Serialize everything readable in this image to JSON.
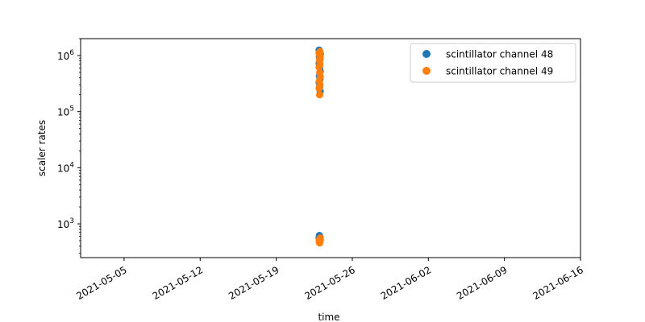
{
  "chart_data": {
    "type": "scatter",
    "title": "",
    "xlabel": "time",
    "ylabel": "scaler rates",
    "x_scale": "date",
    "y_scale": "log",
    "xlim": [
      "2021-05-01",
      "2021-06-16"
    ],
    "ylim": [
      250,
      2000000
    ],
    "x_ticks": [
      "2021-05-05",
      "2021-05-12",
      "2021-05-19",
      "2021-05-26",
      "2021-06-02",
      "2021-06-09",
      "2021-06-16"
    ],
    "y_ticks": [
      {
        "value": 1000,
        "label_base": "10",
        "label_exp": "3"
      },
      {
        "value": 10000,
        "label_base": "10",
        "label_exp": "4"
      },
      {
        "value": 100000,
        "label_base": "10",
        "label_exp": "5"
      },
      {
        "value": 1000000,
        "label_base": "10",
        "label_exp": "6"
      }
    ],
    "legend_position": "top-right",
    "grid": false,
    "series": [
      {
        "name": "scintillator channel 48",
        "color": "#1f77b4",
        "points": [
          {
            "x": "2021-05-23",
            "y": 1250000
          },
          {
            "x": "2021-05-23",
            "y": 1150000
          },
          {
            "x": "2021-05-23",
            "y": 1050000
          },
          {
            "x": "2021-05-23",
            "y": 950000
          },
          {
            "x": "2021-05-23",
            "y": 850000
          },
          {
            "x": "2021-05-23",
            "y": 720000
          },
          {
            "x": "2021-05-23",
            "y": 600000
          },
          {
            "x": "2021-05-23",
            "y": 520000
          },
          {
            "x": "2021-05-23",
            "y": 430000
          },
          {
            "x": "2021-05-23",
            "y": 380000
          },
          {
            "x": "2021-05-23",
            "y": 330000
          },
          {
            "x": "2021-05-23",
            "y": 280000
          },
          {
            "x": "2021-05-23",
            "y": 230000
          },
          {
            "x": "2021-05-23",
            "y": 620
          },
          {
            "x": "2021-05-23",
            "y": 580
          },
          {
            "x": "2021-05-23",
            "y": 560
          },
          {
            "x": "2021-05-23",
            "y": 540
          },
          {
            "x": "2021-05-23",
            "y": 520
          }
        ]
      },
      {
        "name": "scintillator channel 49",
        "color": "#ff7f0e",
        "points": [
          {
            "x": "2021-05-23",
            "y": 1180000
          },
          {
            "x": "2021-05-23",
            "y": 1100000
          },
          {
            "x": "2021-05-23",
            "y": 1000000
          },
          {
            "x": "2021-05-23",
            "y": 920000
          },
          {
            "x": "2021-05-23",
            "y": 820000
          },
          {
            "x": "2021-05-23",
            "y": 700000
          },
          {
            "x": "2021-05-23",
            "y": 620000
          },
          {
            "x": "2021-05-23",
            "y": 500000
          },
          {
            "x": "2021-05-23",
            "y": 420000
          },
          {
            "x": "2021-05-23",
            "y": 350000
          },
          {
            "x": "2021-05-23",
            "y": 300000
          },
          {
            "x": "2021-05-23",
            "y": 260000
          },
          {
            "x": "2021-05-23",
            "y": 200000
          },
          {
            "x": "2021-05-23",
            "y": 560
          },
          {
            "x": "2021-05-23",
            "y": 520
          },
          {
            "x": "2021-05-23",
            "y": 500
          },
          {
            "x": "2021-05-23",
            "y": 480
          },
          {
            "x": "2021-05-23",
            "y": 455
          }
        ]
      }
    ]
  }
}
